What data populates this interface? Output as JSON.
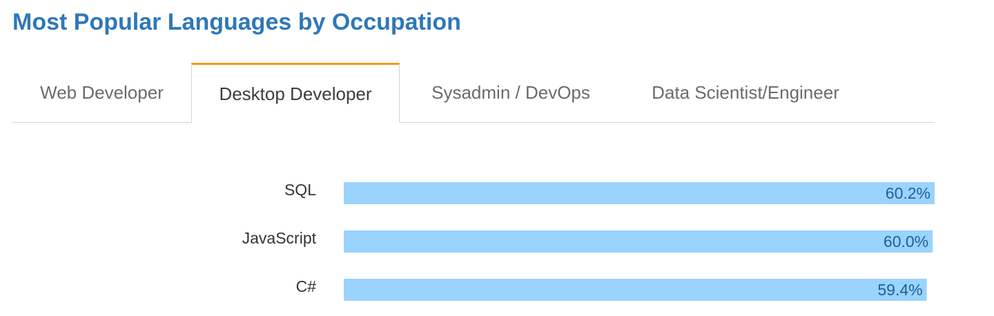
{
  "title": "Most Popular Languages by Occupation",
  "tabs": [
    {
      "label": "Web Developer",
      "active": false
    },
    {
      "label": "Desktop Developer",
      "active": true
    },
    {
      "label": "Sysadmin / DevOps",
      "active": false
    },
    {
      "label": "Data Scientist/Engineer",
      "active": false
    }
  ],
  "colors": {
    "title": "#2f78b7",
    "active_tab_accent": "#f39a1c",
    "bar": "#9ad3fb",
    "value_text": "#1f5f9a"
  },
  "chart_data": {
    "type": "bar",
    "orientation": "horizontal",
    "categories": [
      "SQL",
      "JavaScript",
      "C#"
    ],
    "values": [
      60.2,
      60.0,
      59.4
    ],
    "value_labels": [
      "60.2%",
      "60.0%",
      "59.4%"
    ],
    "title": "",
    "xlabel": "",
    "ylabel": "",
    "grid": false,
    "legend": "none"
  }
}
